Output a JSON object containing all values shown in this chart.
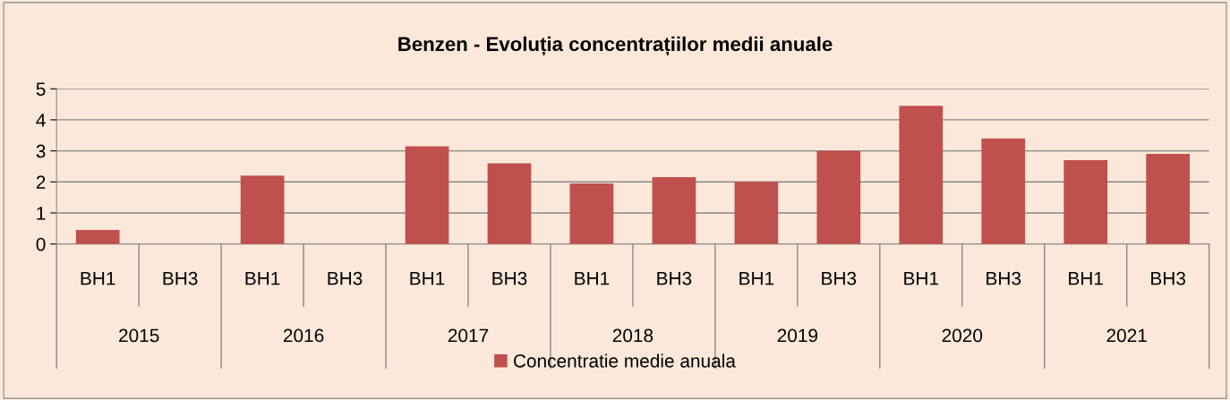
{
  "chart_data": {
    "type": "bar",
    "title": "Benzen - Evoluția concentrațiilor medii anuale",
    "categories": [
      "BH1",
      "BH3",
      "BH1",
      "BH3",
      "BH1",
      "BH3",
      "BH1",
      "BH3",
      "BH1",
      "BH3",
      "BH1",
      "BH3",
      "BH1",
      "BH3"
    ],
    "series": [
      {
        "name": "Concentratie medie anuala",
        "color": "#c0504d",
        "values": [
          0.45,
          null,
          2.2,
          null,
          3.15,
          2.6,
          1.95,
          2.15,
          2.0,
          3.0,
          4.45,
          3.4,
          2.7,
          2.9
        ]
      }
    ],
    "annotations": [
      "2015",
      "2016",
      "2017",
      "2018",
      "2019",
      "2020",
      "2021"
    ],
    "ylim": [
      0,
      5
    ],
    "yticks": [
      0,
      1,
      2,
      3,
      4,
      5
    ],
    "grid": "y",
    "legend": "bottom"
  }
}
